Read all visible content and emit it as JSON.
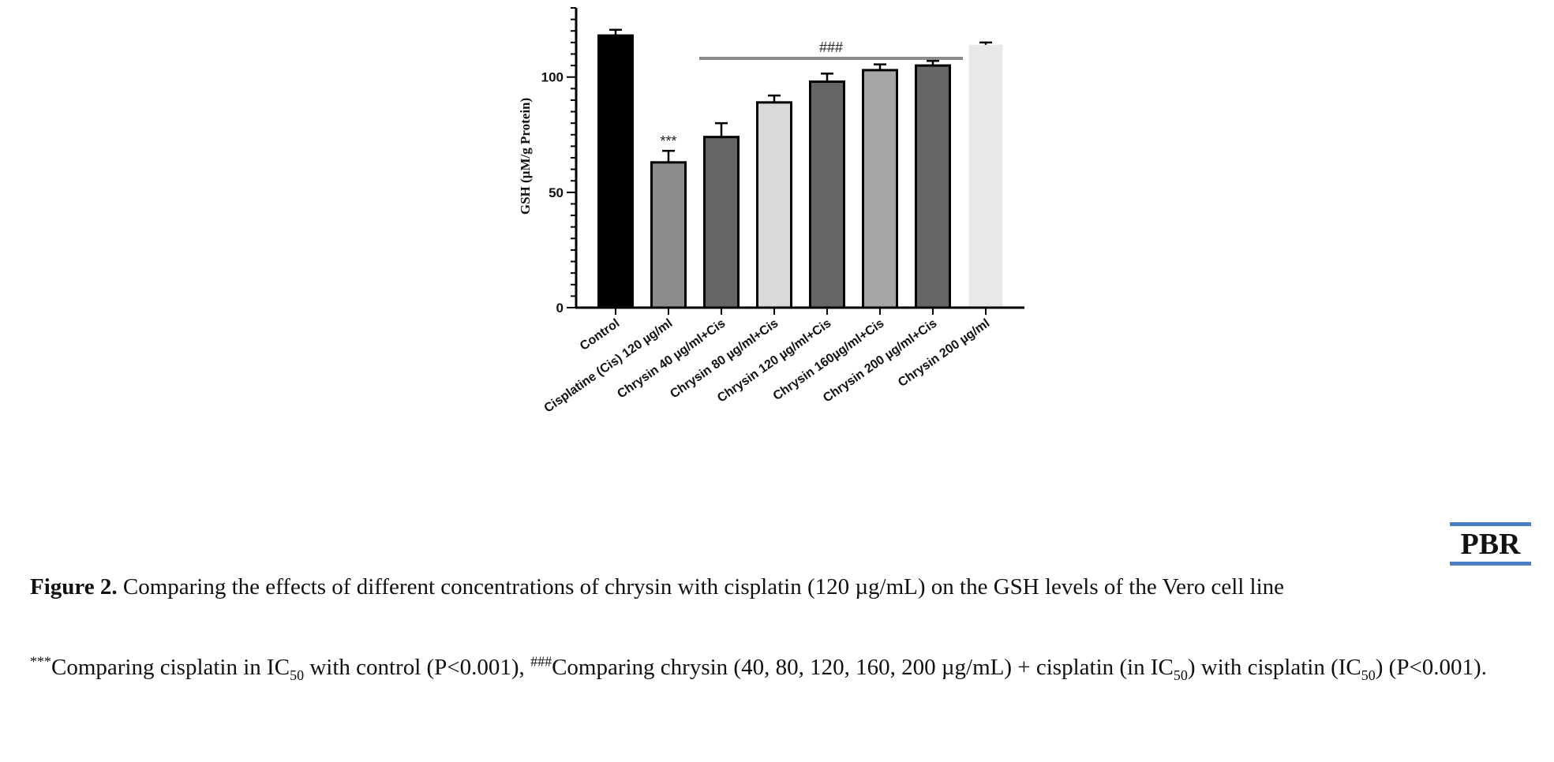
{
  "chart_data": {
    "type": "bar",
    "ylabel": "GSH (µM/g Protein)",
    "ylim": [
      0,
      130
    ],
    "yticks": [
      "0",
      "50",
      "100"
    ],
    "categories": [
      "Control",
      "Cisplatine (Cis) 120 µg/ml",
      "Chrysin 40 µg/ml+Cis",
      "Chrysin 80 µg/ml+Cis",
      "Chrysin 120 µg/ml+Cis",
      "Chrysin 160µg/ml+Cis",
      "Chrysin 200 µg/ml+Cis",
      "Chrysin 200 µg/ml"
    ],
    "values": [
      118,
      63,
      74,
      89,
      98,
      103,
      105,
      114
    ],
    "errors": [
      2.5,
      5,
      6,
      3,
      3.5,
      2.5,
      2,
      1
    ],
    "colors": [
      "#000000",
      "#8c8c8c",
      "#666666",
      "#d9d9d9",
      "#666666",
      "#a6a6a6",
      "#666666",
      "#e8e8e8"
    ],
    "annotations": {
      "single": {
        "text": "***",
        "category_index": 1
      },
      "bracket": {
        "text": "###",
        "from_index": 2,
        "to_index": 6
      }
    }
  },
  "logo": {
    "text": "PBR"
  },
  "caption": {
    "figure_label": "Figure 2.",
    "title": "Comparing the effects of different concentrations of chrysin with cisplatin (120 µg/mL) on the GSH levels of the Vero cell line",
    "note": {
      "stars": "***",
      "p1": "Comparing cisplatin in IC",
      "sub1": "50",
      "p2": " with control (P<0.001), ",
      "hashes": "###",
      "p3": "Comparing chrysin (40, 80, 120, 160, 200 µg/mL) + cisplatin (in IC",
      "sub2": "50",
      "p4": ") with cisplatin (IC",
      "sub3": "50",
      "p5": ") (P<0.001)."
    }
  }
}
